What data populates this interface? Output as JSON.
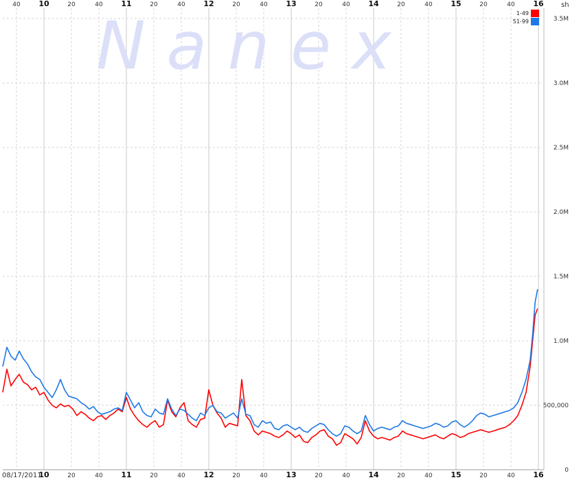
{
  "chart_data": {
    "type": "line",
    "watermark": "N a n e x",
    "date": "08/17/2011",
    "y_unit": "sh",
    "ylim": [
      0,
      3500000
    ],
    "y_ticks": [
      {
        "value": 0,
        "label": "0"
      },
      {
        "value": 500000,
        "label": "500,000"
      },
      {
        "value": 1000000,
        "label": "1.0M"
      },
      {
        "value": 1500000,
        "label": "1.5M"
      },
      {
        "value": 2000000,
        "label": "2.0M"
      },
      {
        "value": 2500000,
        "label": "2.5M"
      },
      {
        "value": 3000000,
        "label": "3.0M"
      },
      {
        "value": 3500000,
        "label": "3.5M"
      }
    ],
    "xlim_hours": [
      9.5,
      16.0
    ],
    "x_ticks": [
      {
        "hour": 9.6667,
        "label": "40",
        "major": false
      },
      {
        "hour": 10.0,
        "label": "10",
        "major": true
      },
      {
        "hour": 10.3333,
        "label": "20",
        "major": false
      },
      {
        "hour": 10.6667,
        "label": "40",
        "major": false
      },
      {
        "hour": 11.0,
        "label": "11",
        "major": true
      },
      {
        "hour": 11.3333,
        "label": "20",
        "major": false
      },
      {
        "hour": 11.6667,
        "label": "40",
        "major": false
      },
      {
        "hour": 12.0,
        "label": "12",
        "major": true
      },
      {
        "hour": 12.3333,
        "label": "20",
        "major": false
      },
      {
        "hour": 12.6667,
        "label": "40",
        "major": false
      },
      {
        "hour": 13.0,
        "label": "13",
        "major": true
      },
      {
        "hour": 13.3333,
        "label": "20",
        "major": false
      },
      {
        "hour": 13.6667,
        "label": "40",
        "major": false
      },
      {
        "hour": 14.0,
        "label": "14",
        "major": true
      },
      {
        "hour": 14.3333,
        "label": "20",
        "major": false
      },
      {
        "hour": 14.6667,
        "label": "40",
        "major": false
      },
      {
        "hour": 15.0,
        "label": "15",
        "major": true
      },
      {
        "hour": 15.3333,
        "label": "20",
        "major": false
      },
      {
        "hour": 15.6667,
        "label": "40",
        "major": false
      },
      {
        "hour": 16.0,
        "label": "16",
        "major": true
      }
    ],
    "legend_position": "top-right",
    "grid": true,
    "series": [
      {
        "name": "1-49",
        "color": "#ff0000",
        "x": [
          9.5,
          9.55,
          9.6,
          9.65,
          9.7,
          9.75,
          9.8,
          9.85,
          9.9,
          9.95,
          10.0,
          10.05,
          10.1,
          10.15,
          10.2,
          10.25,
          10.3,
          10.35,
          10.4,
          10.45,
          10.5,
          10.55,
          10.6,
          10.65,
          10.7,
          10.75,
          10.8,
          10.85,
          10.9,
          10.95,
          11.0,
          11.05,
          11.1,
          11.15,
          11.2,
          11.25,
          11.3,
          11.35,
          11.4,
          11.45,
          11.5,
          11.55,
          11.6,
          11.65,
          11.7,
          11.75,
          11.8,
          11.85,
          11.9,
          11.95,
          12.0,
          12.05,
          12.1,
          12.15,
          12.2,
          12.25,
          12.3,
          12.35,
          12.4,
          12.45,
          12.5,
          12.55,
          12.6,
          12.65,
          12.7,
          12.75,
          12.8,
          12.85,
          12.9,
          12.95,
          13.0,
          13.05,
          13.1,
          13.15,
          13.2,
          13.25,
          13.3,
          13.35,
          13.4,
          13.45,
          13.5,
          13.55,
          13.6,
          13.65,
          13.7,
          13.75,
          13.8,
          13.85,
          13.9,
          13.95,
          14.0,
          14.05,
          14.1,
          14.15,
          14.2,
          14.25,
          14.3,
          14.35,
          14.4,
          14.45,
          14.5,
          14.55,
          14.6,
          14.65,
          14.7,
          14.75,
          14.8,
          14.85,
          14.9,
          14.95,
          15.0,
          15.05,
          15.1,
          15.15,
          15.2,
          15.25,
          15.3,
          15.35,
          15.4,
          15.45,
          15.5,
          15.55,
          15.6,
          15.65,
          15.7,
          15.75,
          15.8,
          15.85,
          15.9,
          15.93,
          15.96,
          15.99
        ],
        "values": [
          600000,
          780000,
          650000,
          700000,
          740000,
          680000,
          660000,
          620000,
          640000,
          580000,
          600000,
          540000,
          500000,
          480000,
          510000,
          490000,
          500000,
          470000,
          420000,
          450000,
          430000,
          400000,
          380000,
          410000,
          420000,
          390000,
          420000,
          440000,
          470000,
          450000,
          560000,
          470000,
          420000,
          380000,
          350000,
          330000,
          360000,
          380000,
          330000,
          350000,
          540000,
          450000,
          410000,
          480000,
          520000,
          380000,
          350000,
          330000,
          390000,
          400000,
          620000,
          500000,
          440000,
          400000,
          330000,
          360000,
          350000,
          340000,
          700000,
          420000,
          380000,
          300000,
          270000,
          300000,
          290000,
          280000,
          260000,
          250000,
          270000,
          300000,
          280000,
          250000,
          270000,
          220000,
          210000,
          250000,
          270000,
          300000,
          310000,
          260000,
          240000,
          190000,
          210000,
          280000,
          260000,
          240000,
          200000,
          250000,
          380000,
          300000,
          260000,
          240000,
          250000,
          240000,
          230000,
          250000,
          260000,
          300000,
          280000,
          270000,
          260000,
          250000,
          240000,
          250000,
          260000,
          270000,
          250000,
          240000,
          260000,
          280000,
          270000,
          250000,
          260000,
          280000,
          290000,
          300000,
          310000,
          300000,
          290000,
          300000,
          310000,
          320000,
          330000,
          350000,
          380000,
          420000,
          500000,
          600000,
          800000,
          1000000,
          1200000,
          1250000
        ]
      },
      {
        "name": "51-99",
        "color": "#1e78e6",
        "x": [
          9.5,
          9.55,
          9.6,
          9.65,
          9.7,
          9.75,
          9.8,
          9.85,
          9.9,
          9.95,
          10.0,
          10.05,
          10.1,
          10.15,
          10.2,
          10.25,
          10.3,
          10.35,
          10.4,
          10.45,
          10.5,
          10.55,
          10.6,
          10.65,
          10.7,
          10.75,
          10.8,
          10.85,
          10.9,
          10.95,
          11.0,
          11.05,
          11.1,
          11.15,
          11.2,
          11.25,
          11.3,
          11.35,
          11.4,
          11.45,
          11.5,
          11.55,
          11.6,
          11.65,
          11.7,
          11.75,
          11.8,
          11.85,
          11.9,
          11.95,
          12.0,
          12.05,
          12.1,
          12.15,
          12.2,
          12.25,
          12.3,
          12.35,
          12.4,
          12.45,
          12.5,
          12.55,
          12.6,
          12.65,
          12.7,
          12.75,
          12.8,
          12.85,
          12.9,
          12.95,
          13.0,
          13.05,
          13.1,
          13.15,
          13.2,
          13.25,
          13.3,
          13.35,
          13.4,
          13.45,
          13.5,
          13.55,
          13.6,
          13.65,
          13.7,
          13.75,
          13.8,
          13.85,
          13.9,
          13.95,
          14.0,
          14.05,
          14.1,
          14.15,
          14.2,
          14.25,
          14.3,
          14.35,
          14.4,
          14.45,
          14.5,
          14.55,
          14.6,
          14.65,
          14.7,
          14.75,
          14.8,
          14.85,
          14.9,
          14.95,
          15.0,
          15.05,
          15.1,
          15.15,
          15.2,
          15.25,
          15.3,
          15.35,
          15.4,
          15.45,
          15.5,
          15.55,
          15.6,
          15.65,
          15.7,
          15.75,
          15.8,
          15.85,
          15.9,
          15.93,
          15.96,
          15.99
        ],
        "values": [
          800000,
          950000,
          880000,
          850000,
          920000,
          860000,
          820000,
          760000,
          720000,
          700000,
          640000,
          600000,
          560000,
          620000,
          700000,
          620000,
          570000,
          560000,
          550000,
          520000,
          500000,
          470000,
          490000,
          450000,
          430000,
          440000,
          450000,
          470000,
          480000,
          460000,
          600000,
          540000,
          480000,
          520000,
          450000,
          420000,
          410000,
          470000,
          440000,
          430000,
          550000,
          470000,
          420000,
          470000,
          460000,
          430000,
          400000,
          380000,
          440000,
          420000,
          480000,
          500000,
          450000,
          440000,
          400000,
          420000,
          440000,
          400000,
          550000,
          430000,
          420000,
          350000,
          330000,
          380000,
          360000,
          370000,
          320000,
          310000,
          340000,
          350000,
          330000,
          310000,
          330000,
          300000,
          290000,
          320000,
          340000,
          360000,
          350000,
          310000,
          280000,
          260000,
          280000,
          340000,
          330000,
          300000,
          280000,
          300000,
          420000,
          350000,
          300000,
          320000,
          330000,
          320000,
          310000,
          330000,
          340000,
          380000,
          360000,
          350000,
          340000,
          330000,
          320000,
          330000,
          340000,
          360000,
          350000,
          330000,
          340000,
          370000,
          380000,
          350000,
          330000,
          350000,
          380000,
          420000,
          440000,
          430000,
          410000,
          420000,
          430000,
          440000,
          450000,
          460000,
          480000,
          520000,
          600000,
          700000,
          850000,
          1050000,
          1300000,
          1400000
        ]
      }
    ]
  }
}
